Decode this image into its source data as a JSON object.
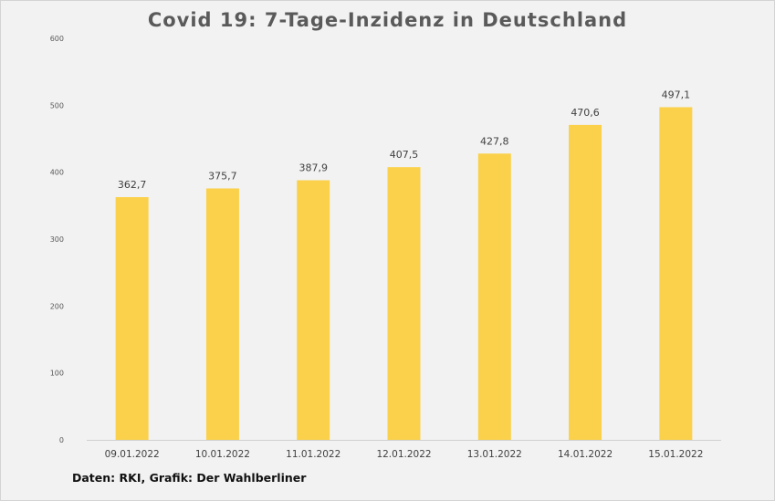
{
  "chart_data": {
    "type": "bar",
    "title": "Covid 19: 7-Tage-Inzidenz in Deutschland",
    "categories": [
      "09.01.2022",
      "10.01.2022",
      "11.01.2022",
      "12.01.2022",
      "13.01.2022",
      "14.01.2022",
      "15.01.2022"
    ],
    "values": [
      362.7,
      375.7,
      387.9,
      407.5,
      427.8,
      470.6,
      497.1
    ],
    "value_labels": [
      "362,7",
      "375,7",
      "387,9",
      "407,5",
      "427,8",
      "470,6",
      "497,1"
    ],
    "y_ticks": [
      0,
      100,
      200,
      300,
      400,
      500,
      600
    ],
    "ylim": [
      0,
      600
    ],
    "xlabel": "",
    "ylabel": "",
    "grid": false,
    "bar_color": "#fbd14b",
    "source": "Daten: RKI, Grafik: Der Wahlberliner"
  }
}
